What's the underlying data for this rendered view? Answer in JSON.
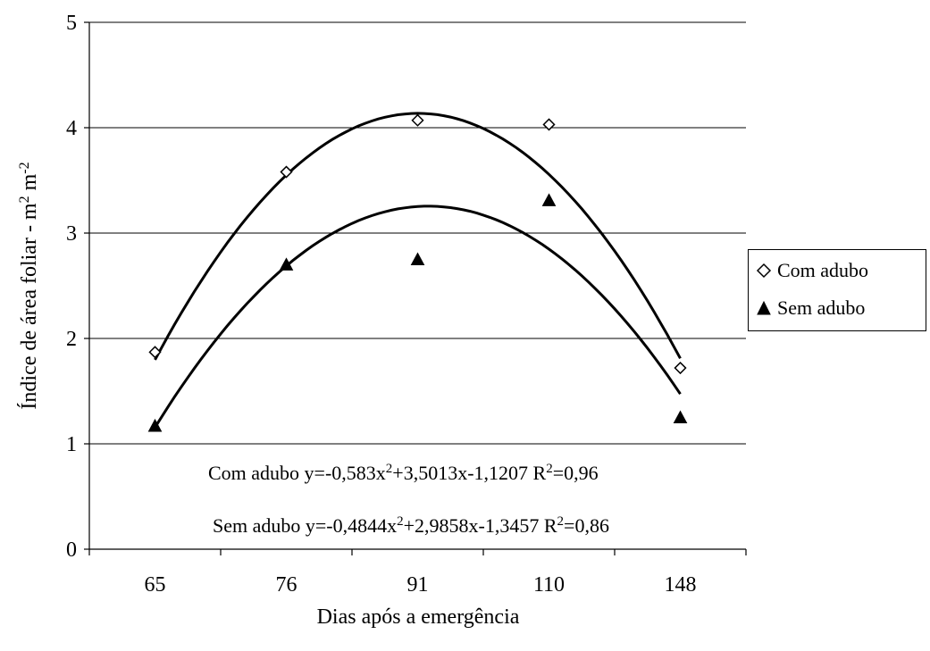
{
  "chart_data": {
    "type": "scatter",
    "categories": [
      "65",
      "76",
      "91",
      "110",
      "148"
    ],
    "x_positions": [
      1,
      2,
      3,
      4,
      5
    ],
    "ylim": [
      0,
      5
    ],
    "yticks": [
      "0",
      "1",
      "2",
      "3",
      "4",
      "5"
    ],
    "xlabel": "Dias após a emergência",
    "ylabel": "Índice de área foliar - m",
    "ylabel_sup1": "2",
    "ylabel_mid": " m",
    "ylabel_sup2": "-2",
    "grid": true,
    "legend_position": "right",
    "series": [
      {
        "name": "Com adubo",
        "marker": "diamond-open",
        "color": "#000000",
        "values": [
          1.87,
          3.58,
          4.07,
          4.03,
          1.72
        ],
        "fit": {
          "a": -0.583,
          "b": 3.5013,
          "c": -1.1207
        }
      },
      {
        "name": "Sem adubo",
        "marker": "triangle-filled",
        "color": "#000000",
        "values": [
          1.17,
          2.7,
          2.75,
          3.31,
          1.25
        ],
        "fit": {
          "a": -0.4844,
          "b": 2.9858,
          "c": -1.3457
        }
      }
    ],
    "annotations": [
      {
        "pre": "Com adubo y=-0,583x",
        "sup1": "2",
        "mid": "+3,5013x-1,1207  R",
        "sup2": "2",
        "post": "=0,96"
      },
      {
        "pre": "Sem adubo y=-0,4844x",
        "sup1": "2",
        "mid": "+2,9858x-1,3457  R",
        "sup2": "2",
        "post": "=0,86"
      }
    ]
  },
  "legend": {
    "items": [
      {
        "label": "Com adubo"
      },
      {
        "label": "Sem adubo"
      }
    ]
  }
}
